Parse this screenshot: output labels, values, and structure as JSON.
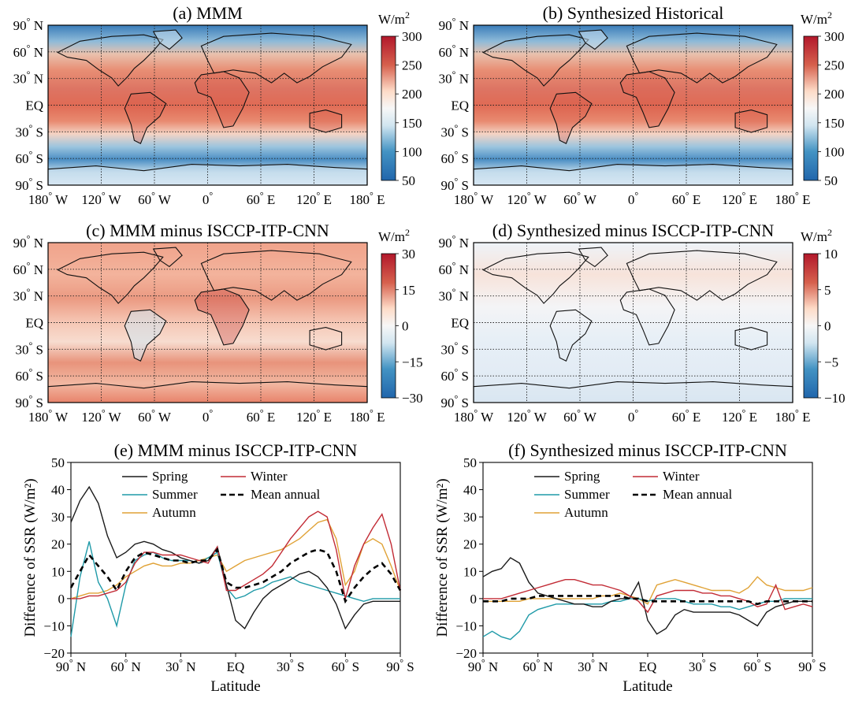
{
  "units": {
    "base": "W/m",
    "exp": "2"
  },
  "latitude_labels": [
    "90° N",
    "60° N",
    "30° N",
    "EQ",
    "30° S",
    "60° S",
    "90° S"
  ],
  "longitude_labels": [
    "180° W",
    "120° W",
    "60° W",
    "0°",
    "60° E",
    "120° E",
    "180° E"
  ],
  "map_panels": [
    {
      "title": "(a) MMM",
      "colorbar_ticks": [
        "300",
        "250",
        "200",
        "150",
        "100",
        "50"
      ],
      "colorbar_range": [
        50,
        300
      ],
      "pattern": "abs"
    },
    {
      "title": "(b) Synthesized Historical",
      "colorbar_ticks": [
        "300",
        "250",
        "200",
        "150",
        "100",
        "50"
      ],
      "colorbar_range": [
        50,
        300
      ],
      "pattern": "abs"
    },
    {
      "title": "(c) MMM minus ISCCP-ITP-CNN",
      "colorbar_ticks": [
        "30",
        "15",
        "0",
        "−15",
        "−30"
      ],
      "colorbar_range": [
        -30,
        30
      ],
      "pattern": "diff-mmm"
    },
    {
      "title": "(d) Synthesized minus ISCCP-ITP-CNN",
      "colorbar_ticks": [
        "10",
        "5",
        "0",
        "−5",
        "−10"
      ],
      "colorbar_range": [
        -10,
        10
      ],
      "pattern": "diff-syn"
    }
  ],
  "colors": {
    "spring": "#1a1a1a",
    "summer": "#1f9aa8",
    "autumn": "#e0a236",
    "winter": "#c22b35",
    "mean": "#000000",
    "cmap_low": "#2166ac",
    "cmap_mid": "#f7f7f7",
    "cmap_high": "#b2182b"
  },
  "chart_data": [
    {
      "type": "line",
      "title": "(e) MMM minus ISCCP-ITP-CNN",
      "xlabel": "Latitude",
      "ylabel": "Difference of SSR (W/m²)",
      "ylim": [
        -20,
        50
      ],
      "yticks": [
        -20,
        -10,
        0,
        10,
        20,
        30,
        40,
        50
      ],
      "x": [
        90,
        85,
        80,
        75,
        70,
        65,
        60,
        55,
        50,
        45,
        40,
        35,
        30,
        25,
        20,
        15,
        10,
        5,
        0,
        -5,
        -10,
        -15,
        -20,
        -25,
        -30,
        -35,
        -40,
        -45,
        -50,
        -55,
        -60,
        -65,
        -70,
        -75,
        -80,
        -85,
        -90
      ],
      "series": [
        {
          "name": "Spring",
          "key": "spring",
          "values": [
            28,
            36,
            41,
            35,
            23,
            15,
            17,
            20,
            21,
            20,
            18,
            17,
            15,
            14,
            13,
            14,
            19,
            5,
            -8,
            -11,
            -5,
            0,
            3,
            5,
            7,
            9,
            10,
            8,
            4,
            -2,
            -11,
            -6,
            -2,
            -1,
            -1,
            -1,
            -1
          ]
        },
        {
          "name": "Summer",
          "key": "summer",
          "values": [
            -14,
            8,
            21,
            6,
            0,
            -10,
            5,
            14,
            16,
            17,
            15,
            14,
            14,
            14,
            13,
            15,
            17,
            4,
            0,
            1,
            3,
            4,
            6,
            7,
            8,
            6,
            5,
            4,
            3,
            2,
            1,
            0,
            -1,
            0,
            0,
            0,
            0
          ]
        },
        {
          "name": "Autumn",
          "key": "autumn",
          "values": [
            0,
            1,
            2,
            2,
            3,
            5,
            8,
            10,
            12,
            13,
            12,
            12,
            13,
            13,
            14,
            15,
            16,
            10,
            12,
            14,
            15,
            16,
            17,
            18,
            20,
            22,
            25,
            28,
            29,
            22,
            5,
            10,
            20,
            22,
            20,
            12,
            3
          ]
        },
        {
          "name": "Winter",
          "key": "winter",
          "values": [
            0,
            0,
            1,
            1,
            2,
            3,
            6,
            13,
            17,
            17,
            16,
            16,
            16,
            15,
            14,
            13,
            19,
            3,
            3,
            5,
            7,
            9,
            12,
            17,
            22,
            26,
            30,
            32,
            30,
            18,
            0,
            12,
            20,
            26,
            31,
            20,
            3
          ]
        },
        {
          "name": "Mean annual",
          "key": "mean",
          "dashed": true,
          "values": [
            4,
            10,
            16,
            12,
            8,
            3,
            10,
            15,
            17,
            16,
            15,
            14,
            14,
            13,
            14,
            14,
            18,
            6,
            4,
            4,
            5,
            6,
            8,
            10,
            13,
            15,
            17,
            18,
            17,
            10,
            -1,
            4,
            8,
            11,
            13,
            9,
            3
          ]
        }
      ]
    },
    {
      "type": "line",
      "title": "(f) Synthesized minus ISCCP-ITP-CNN",
      "xlabel": "Latitude",
      "ylabel": "Difference of SSR (W/m²)",
      "ylim": [
        -20,
        50
      ],
      "yticks": [
        -20,
        -10,
        0,
        10,
        20,
        30,
        40,
        50
      ],
      "x": [
        90,
        85,
        80,
        75,
        70,
        65,
        60,
        55,
        50,
        45,
        40,
        35,
        30,
        25,
        20,
        15,
        10,
        5,
        0,
        -5,
        -10,
        -15,
        -20,
        -25,
        -30,
        -35,
        -40,
        -45,
        -50,
        -55,
        -60,
        -65,
        -70,
        -75,
        -80,
        -85,
        -90
      ],
      "series": [
        {
          "name": "Spring",
          "key": "spring",
          "values": [
            8,
            10,
            11,
            15,
            13,
            6,
            2,
            1,
            0,
            -1,
            -2,
            -2,
            -3,
            -3,
            -1,
            0,
            0,
            6,
            -8,
            -13,
            -11,
            -6,
            -4,
            -5,
            -5,
            -5,
            -5,
            -5,
            -6,
            -8,
            -10,
            -5,
            -3,
            -2,
            -1,
            -1,
            -1
          ]
        },
        {
          "name": "Summer",
          "key": "summer",
          "values": [
            -14,
            -12,
            -14,
            -15,
            -12,
            -6,
            -4,
            -3,
            -2,
            -2,
            -2,
            -2,
            -2,
            -2,
            -1,
            -1,
            0,
            0,
            -1,
            0,
            0,
            0,
            -1,
            -2,
            -2,
            -2,
            -3,
            -3,
            -4,
            -3,
            -2,
            -1,
            -1,
            0,
            0,
            0,
            0
          ]
        },
        {
          "name": "Autumn",
          "key": "autumn",
          "values": [
            -1,
            -1,
            -1,
            -1,
            -1,
            0,
            0,
            0,
            0,
            0,
            0,
            0,
            0,
            1,
            1,
            2,
            1,
            0,
            -2,
            5,
            6,
            7,
            6,
            5,
            4,
            3,
            3,
            3,
            2,
            4,
            8,
            5,
            4,
            3,
            3,
            3,
            4
          ]
        },
        {
          "name": "Winter",
          "key": "winter",
          "values": [
            0,
            0,
            0,
            1,
            2,
            3,
            4,
            5,
            6,
            7,
            7,
            6,
            5,
            5,
            4,
            3,
            1,
            -1,
            -5,
            1,
            2,
            3,
            3,
            3,
            2,
            2,
            1,
            1,
            0,
            -1,
            -3,
            -2,
            5,
            -4,
            -3,
            -2,
            -3
          ]
        },
        {
          "name": "Mean annual",
          "key": "mean",
          "dashed": true,
          "values": [
            -1,
            -1,
            -1,
            0,
            0,
            0,
            1,
            1,
            1,
            1,
            1,
            1,
            1,
            1,
            1,
            1,
            0,
            0,
            -1,
            -1,
            -1,
            -1,
            -1,
            -1,
            -1,
            -1,
            -1,
            -1,
            -1,
            -1,
            -2,
            -1,
            -1,
            -1,
            -1,
            -1,
            -1
          ]
        }
      ]
    }
  ]
}
